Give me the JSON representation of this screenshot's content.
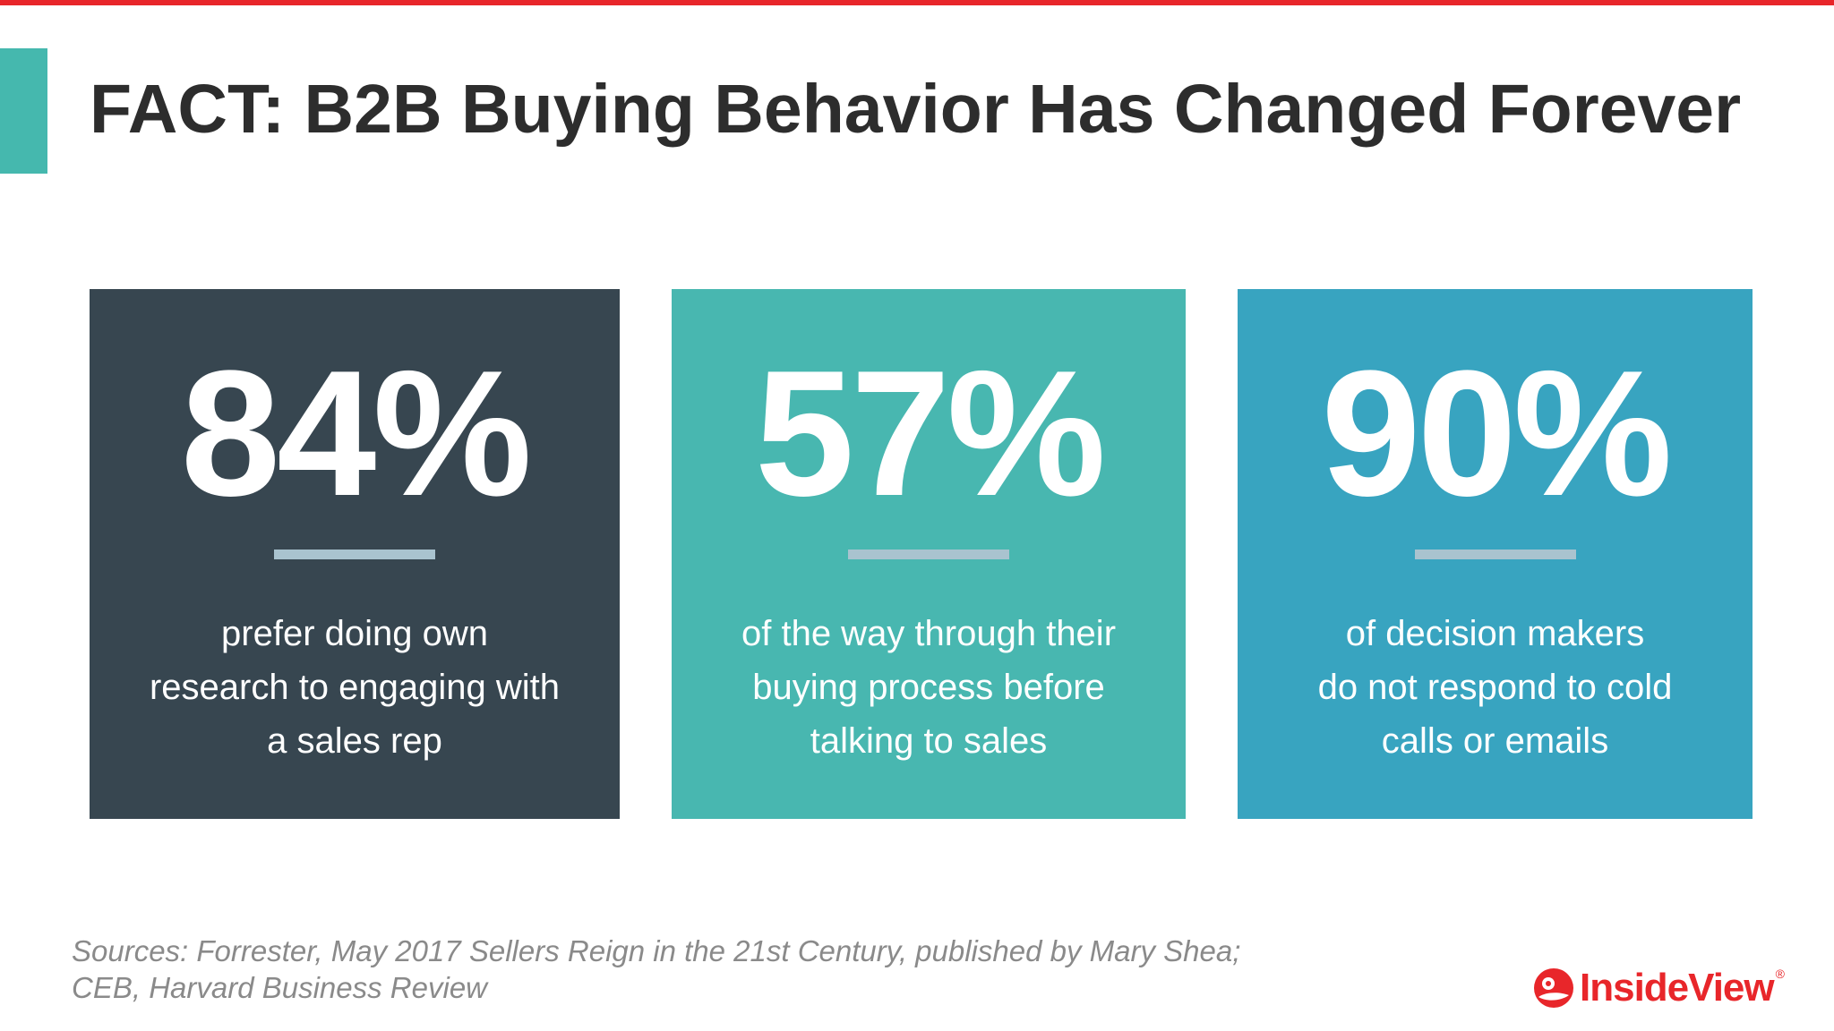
{
  "slide": {
    "title": "FACT: B2B Buying Behavior Has Changed Forever",
    "colors": {
      "top_bar": "#e8262a",
      "title_accent": "#45b8ae",
      "title_text": "#2d2d2d",
      "divider": "#a9c3cf"
    }
  },
  "stats": [
    {
      "value": "84%",
      "color": "#374650",
      "description_lines": [
        "prefer doing own",
        "research to engaging with",
        "a sales rep"
      ]
    },
    {
      "value": "57%",
      "color": "#48b7b0",
      "description_lines": [
        "of the way through their",
        "buying process before",
        "talking to sales"
      ]
    },
    {
      "value": "90%",
      "color": "#38a4c0",
      "description_lines": [
        "of decision makers",
        "do not respond to cold",
        "calls or emails"
      ]
    }
  ],
  "footer": {
    "sources_lines": [
      "Sources: Forrester, May 2017 Sellers Reign in the 21st Century, published by Mary Shea;",
      "CEB, Harvard Business Review"
    ],
    "logo": {
      "text": "InsideView",
      "registered_mark": "®",
      "icon": "insideview-logo-icon",
      "color": "#e8262a"
    }
  }
}
